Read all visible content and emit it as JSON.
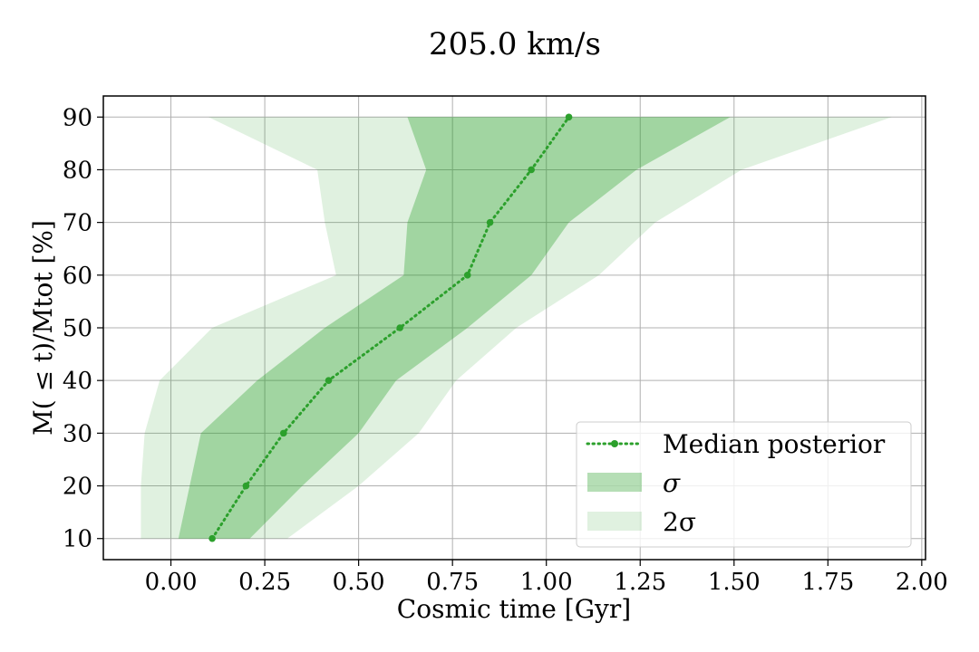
{
  "chart_data": {
    "type": "area",
    "title": "205.0 km/s",
    "xlabel": "Cosmic time [Gyr]",
    "ylabel": "M( ≤ t)/Mtot [%]",
    "xlim": [
      -0.18,
      2.01
    ],
    "ylim": [
      6,
      94
    ],
    "xticks": [
      0.0,
      0.25,
      0.5,
      0.75,
      1.0,
      1.25,
      1.5,
      1.75,
      2.0
    ],
    "xtick_labels": [
      "0.00",
      "0.25",
      "0.50",
      "0.75",
      "1.00",
      "1.25",
      "1.50",
      "1.75",
      "2.00"
    ],
    "yticks": [
      10,
      20,
      30,
      40,
      50,
      60,
      70,
      80,
      90
    ],
    "ytick_labels": [
      "10",
      "20",
      "30",
      "40",
      "50",
      "60",
      "70",
      "80",
      "90"
    ],
    "grid": true,
    "legend_position": "lower-right",
    "series": [
      {
        "name": "2σ",
        "kind": "band",
        "color": "#2ca02c",
        "opacity": 0.15,
        "y": [
          10,
          20,
          30,
          40,
          50,
          60,
          70,
          80,
          90
        ],
        "lower": [
          -0.08,
          -0.08,
          -0.07,
          -0.03,
          0.11,
          0.44,
          0.41,
          0.39,
          0.1
        ],
        "upper": [
          0.31,
          0.5,
          0.66,
          0.76,
          0.92,
          1.14,
          1.29,
          1.52,
          1.92
        ]
      },
      {
        "name": "σ",
        "kind": "band",
        "color": "#2ca02c",
        "opacity": 0.35,
        "y": [
          10,
          20,
          30,
          40,
          50,
          60,
          70,
          80,
          90
        ],
        "lower": [
          0.02,
          0.05,
          0.08,
          0.23,
          0.41,
          0.62,
          0.63,
          0.68,
          0.63
        ],
        "upper": [
          0.21,
          0.35,
          0.5,
          0.6,
          0.79,
          0.96,
          1.06,
          1.24,
          1.49
        ]
      },
      {
        "name": "Median posterior",
        "kind": "line",
        "color": "#2ca02c",
        "linestyle": "dotted",
        "marker": "circle",
        "x": [
          0.11,
          0.2,
          0.3,
          0.42,
          0.61,
          0.79,
          0.85,
          0.96,
          1.06
        ],
        "y": [
          10,
          20,
          30,
          40,
          50,
          60,
          70,
          80,
          90
        ]
      }
    ]
  }
}
